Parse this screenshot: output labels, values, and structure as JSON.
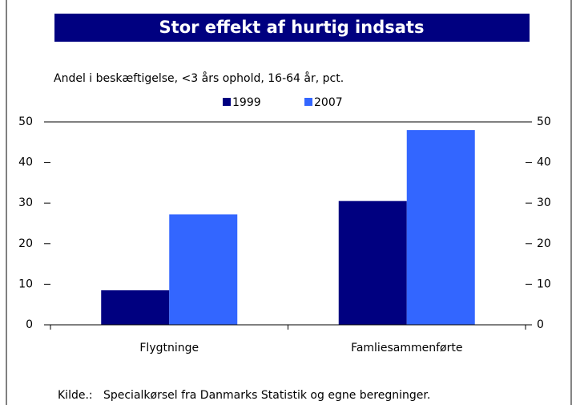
{
  "chart_data": {
    "type": "bar",
    "title": "Stor effekt af hurtig indsats",
    "subtitle": "Andel i beskæftigelse, <3 års ophold, 16-64 år, pct.",
    "source": "Kilde.:   Specialkørsel fra Danmarks Statistik og egne beregninger.",
    "categories": [
      "Flygtninge",
      "Famliesammenførte"
    ],
    "series": [
      {
        "name": "1999",
        "color": "#000080",
        "values": [
          8.5,
          30.5
        ]
      },
      {
        "name": "2007",
        "color": "#3366ff",
        "values": [
          27.2,
          48
        ]
      }
    ],
    "ylim": [
      0,
      50
    ],
    "yticks": [
      0,
      10,
      20,
      30,
      40,
      50
    ],
    "y2lim": [
      0,
      50
    ],
    "y2ticks": [
      0,
      10,
      20,
      30,
      40,
      50
    ],
    "grid": false,
    "legend": "top"
  }
}
